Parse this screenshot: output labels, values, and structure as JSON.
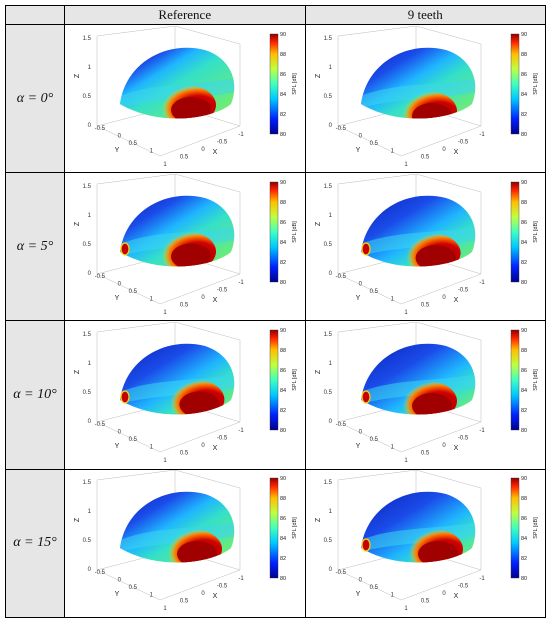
{
  "columns": [
    "Reference",
    "9 teeth"
  ],
  "rows": [
    {
      "angle": "α = 0°",
      "hot": [
        [
          0.55,
          0.72
        ],
        [
          0.55,
          0.8
        ]
      ],
      "spot": [
        false,
        false
      ],
      "blue": [
        0.35,
        0.45
      ]
    },
    {
      "angle": "α = 5°",
      "hot": [
        [
          0.55,
          0.7
        ],
        [
          0.58,
          0.72
        ]
      ],
      "spot": [
        true,
        true
      ],
      "blue": [
        0.45,
        0.55
      ]
    },
    {
      "angle": "α = 10°",
      "hot": [
        [
          0.62,
          0.7
        ],
        [
          0.55,
          0.72
        ]
      ],
      "spot": [
        true,
        true
      ],
      "blue": [
        0.55,
        0.6
      ]
    },
    {
      "angle": "α = 15°",
      "hot": [
        [
          0.6,
          0.72
        ],
        [
          0.6,
          0.72
        ]
      ],
      "spot": [
        false,
        true
      ],
      "blue": [
        0.45,
        0.6
      ]
    }
  ],
  "axes": {
    "z_label": "Z",
    "y_label": "Y",
    "x_label": "X",
    "z_ticks": [
      "1.5",
      "1",
      "0.5",
      "0"
    ],
    "y_ticks": [
      "-0.5",
      "0",
      "0.5",
      "1"
    ],
    "x_ticks": [
      "1",
      "0.5",
      "0",
      "-0.5",
      "-1"
    ]
  },
  "colorbar": {
    "label": "SPL [dB]",
    "ticks": [
      "90",
      "88",
      "86",
      "84",
      "82",
      "80"
    ],
    "min": 80,
    "max": 90
  }
}
